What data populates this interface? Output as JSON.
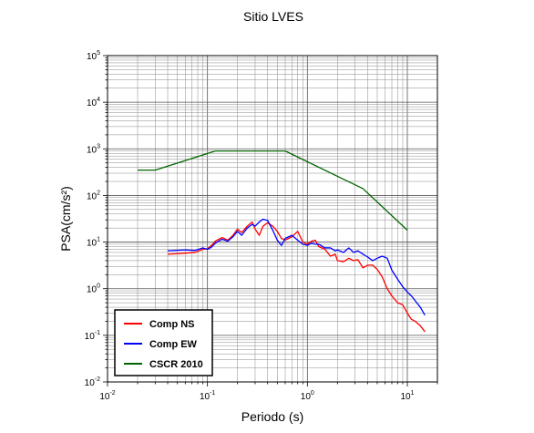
{
  "chart_data": {
    "type": "line",
    "title": "Sitio LVES",
    "xlabel": "Periodo (s)",
    "ylabel": "PSA(cm/s²)",
    "xscale": "log",
    "yscale": "log",
    "xlim": [
      0.01,
      20
    ],
    "ylim": [
      0.01,
      100000
    ],
    "x_ticks": [
      {
        "base": "10",
        "exp": "-2"
      },
      {
        "base": "10",
        "exp": "-1"
      },
      {
        "base": "10",
        "exp": "0"
      },
      {
        "base": "10",
        "exp": "1"
      }
    ],
    "y_ticks": [
      {
        "base": "10",
        "exp": "-2"
      },
      {
        "base": "10",
        "exp": "-1"
      },
      {
        "base": "10",
        "exp": "0"
      },
      {
        "base": "10",
        "exp": "1"
      },
      {
        "base": "10",
        "exp": "2"
      },
      {
        "base": "10",
        "exp": "3"
      },
      {
        "base": "10",
        "exp": "4"
      },
      {
        "base": "10",
        "exp": "5"
      }
    ],
    "grid": true,
    "legend_position": "bottom-left",
    "series": [
      {
        "name": "Comp NS",
        "color": "#ff0000",
        "points": [
          [
            0.04,
            5.5
          ],
          [
            0.06,
            5.8
          ],
          [
            0.075,
            6.0
          ],
          [
            0.09,
            7.0
          ],
          [
            0.1,
            7.2
          ],
          [
            0.11,
            8.5
          ],
          [
            0.12,
            10.5
          ],
          [
            0.14,
            12.5
          ],
          [
            0.16,
            11.0
          ],
          [
            0.18,
            14.0
          ],
          [
            0.2,
            19.0
          ],
          [
            0.22,
            16.0
          ],
          [
            0.25,
            22.0
          ],
          [
            0.28,
            27.0
          ],
          [
            0.3,
            19.0
          ],
          [
            0.33,
            14.0
          ],
          [
            0.36,
            22.0
          ],
          [
            0.4,
            26.0
          ],
          [
            0.45,
            22.0
          ],
          [
            0.5,
            17.0
          ],
          [
            0.55,
            12.0
          ],
          [
            0.6,
            11.0
          ],
          [
            0.7,
            13.0
          ],
          [
            0.8,
            17.0
          ],
          [
            0.9,
            10.0
          ],
          [
            1.0,
            9.0
          ],
          [
            1.1,
            10.5
          ],
          [
            1.2,
            11.0
          ],
          [
            1.3,
            8.0
          ],
          [
            1.5,
            7.0
          ],
          [
            1.7,
            5.0
          ],
          [
            1.9,
            5.5
          ],
          [
            2.0,
            4.0
          ],
          [
            2.3,
            3.8
          ],
          [
            2.6,
            4.5
          ],
          [
            2.9,
            4.0
          ],
          [
            3.2,
            4.2
          ],
          [
            3.6,
            2.8
          ],
          [
            4.0,
            3.2
          ],
          [
            4.5,
            3.2
          ],
          [
            5.0,
            2.6
          ],
          [
            5.6,
            1.8
          ],
          [
            6.3,
            1.0
          ],
          [
            7.0,
            0.7
          ],
          [
            8.0,
            0.5
          ],
          [
            9.0,
            0.45
          ],
          [
            10.0,
            0.3
          ],
          [
            11.0,
            0.22
          ],
          [
            12.0,
            0.2
          ],
          [
            13.5,
            0.16
          ],
          [
            15.0,
            0.12
          ]
        ]
      },
      {
        "name": "Comp EW",
        "color": "#0000ff",
        "points": [
          [
            0.04,
            6.5
          ],
          [
            0.06,
            6.8
          ],
          [
            0.075,
            6.6
          ],
          [
            0.09,
            7.5
          ],
          [
            0.1,
            7.0
          ],
          [
            0.11,
            7.8
          ],
          [
            0.12,
            9.5
          ],
          [
            0.14,
            11.5
          ],
          [
            0.16,
            10.5
          ],
          [
            0.18,
            13.0
          ],
          [
            0.2,
            17.0
          ],
          [
            0.22,
            14.0
          ],
          [
            0.25,
            20.0
          ],
          [
            0.28,
            24.0
          ],
          [
            0.3,
            22.0
          ],
          [
            0.33,
            27.0
          ],
          [
            0.36,
            31.0
          ],
          [
            0.4,
            29.0
          ],
          [
            0.45,
            18.0
          ],
          [
            0.5,
            11.0
          ],
          [
            0.55,
            8.5
          ],
          [
            0.6,
            12.0
          ],
          [
            0.7,
            14.0
          ],
          [
            0.8,
            11.0
          ],
          [
            0.9,
            9.0
          ],
          [
            1.0,
            8.5
          ],
          [
            1.1,
            9.5
          ],
          [
            1.2,
            9.0
          ],
          [
            1.3,
            9.0
          ],
          [
            1.5,
            7.5
          ],
          [
            1.7,
            7.5
          ],
          [
            1.9,
            6.5
          ],
          [
            2.0,
            6.8
          ],
          [
            2.3,
            6.0
          ],
          [
            2.6,
            7.5
          ],
          [
            2.9,
            6.0
          ],
          [
            3.2,
            6.5
          ],
          [
            3.6,
            5.5
          ],
          [
            4.0,
            4.8
          ],
          [
            4.5,
            4.0
          ],
          [
            5.0,
            4.5
          ],
          [
            5.6,
            5.0
          ],
          [
            6.3,
            4.5
          ],
          [
            7.0,
            2.5
          ],
          [
            8.0,
            1.6
          ],
          [
            9.0,
            1.1
          ],
          [
            10.0,
            0.85
          ],
          [
            11.0,
            0.7
          ],
          [
            12.0,
            0.55
          ],
          [
            13.5,
            0.4
          ],
          [
            15.0,
            0.27
          ]
        ]
      },
      {
        "name": "CSCR 2010",
        "color": "#006400",
        "points": [
          [
            0.02,
            350
          ],
          [
            0.03,
            350
          ],
          [
            0.12,
            900
          ],
          [
            0.6,
            900
          ],
          [
            3.6,
            140
          ],
          [
            10.0,
            18
          ]
        ]
      }
    ]
  }
}
